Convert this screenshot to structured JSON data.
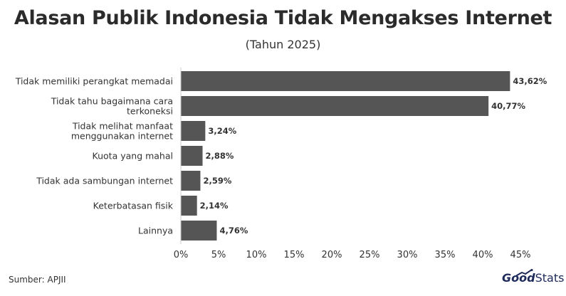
{
  "header": {
    "title": "Alasan Publik Indonesia Tidak Mengakses Internet",
    "subtitle": "(Tahun 2025)"
  },
  "footer": {
    "source": "Sumber: APJII",
    "logo_good": "Good",
    "logo_stats": "Stats"
  },
  "colors": {
    "bar": "#555555",
    "axis": "#cccccc",
    "logo": "#1e2a5a"
  },
  "chart_data": {
    "type": "bar",
    "orientation": "horizontal",
    "categories": [
      [
        "Tidak memiliki perangkat memadai"
      ],
      [
        "Tidak tahu bagaimana cara",
        "terkoneksi"
      ],
      [
        "Tidak melihat manfaat",
        "menggunakan internet"
      ],
      [
        "Kuota yang mahal"
      ],
      [
        "Tidak ada sambungan internet"
      ],
      [
        "Keterbatasan fisik"
      ],
      [
        "Lainnya"
      ]
    ],
    "values": [
      43.62,
      40.77,
      3.24,
      2.88,
      2.59,
      2.14,
      4.76
    ],
    "data_labels": [
      "43,62%",
      "40,77%",
      "3,24%",
      "2,88%",
      "2,59%",
      "2,14%",
      "4,76%"
    ],
    "xlim": [
      0,
      45
    ],
    "xticks": [
      0,
      5,
      10,
      15,
      20,
      25,
      30,
      35,
      40,
      45
    ],
    "xtick_labels": [
      "0%",
      "5%",
      "10%",
      "15%",
      "20%",
      "25%",
      "30%",
      "35%",
      "40%",
      "45%"
    ],
    "grid": false
  }
}
